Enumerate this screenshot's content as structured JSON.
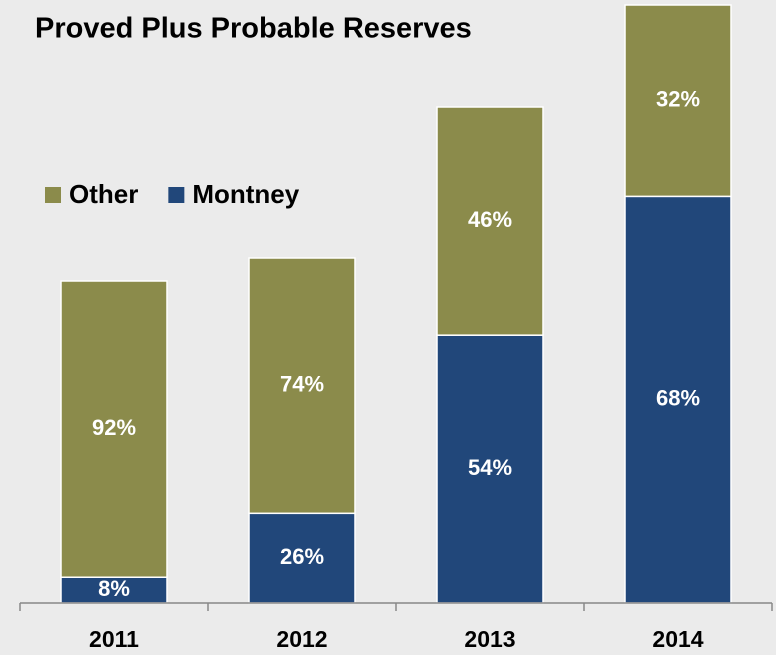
{
  "chart_data": {
    "type": "stacked_bar_percent",
    "title": "Proved Plus Probable Reserves",
    "categories": [
      "2011",
      "2012",
      "2013",
      "2014"
    ],
    "totals": [
      322,
      345,
      496,
      598
    ],
    "ylim": [
      0,
      600
    ],
    "series": [
      {
        "name": "Montney",
        "color": "#21477a",
        "values": [
          8,
          26,
          54,
          68
        ],
        "value_labels": [
          "8%",
          "26%",
          "54%",
          "68%"
        ]
      },
      {
        "name": "Other",
        "color": "#8b8b4b",
        "values": [
          92,
          74,
          46,
          32
        ],
        "value_labels": [
          "92%",
          "74%",
          "46%",
          "32%"
        ]
      }
    ],
    "legend": "left"
  }
}
